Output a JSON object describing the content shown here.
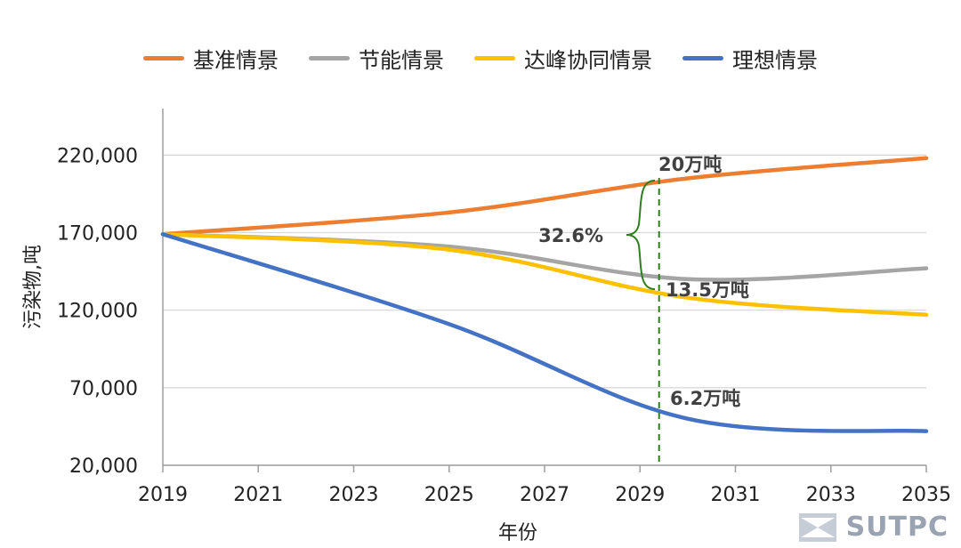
{
  "chart_data": {
    "type": "line",
    "title": "",
    "xlabel": "年份",
    "ylabel": "污染物,吨",
    "x": [
      2019,
      2025,
      2030,
      2035
    ],
    "xticks": [
      "2019",
      "2021",
      "2023",
      "2025",
      "2027",
      "2029",
      "2031",
      "2033",
      "2035"
    ],
    "yticks": [
      "20,000",
      "70,000",
      "120,000",
      "170,000",
      "220,000"
    ],
    "xlim": [
      2019,
      2035
    ],
    "ylim": [
      20000,
      250000
    ],
    "grid": "horizontal",
    "legend": "top-center",
    "series": [
      {
        "name": "基准情景",
        "color": "#ED7D31",
        "x": [
          2019,
          2025,
          2030,
          2035
        ],
        "y": [
          169000,
          183000,
          205000,
          218000
        ]
      },
      {
        "name": "节能情景",
        "color": "#A5A5A5",
        "x": [
          2019,
          2025,
          2030,
          2035
        ],
        "y": [
          169000,
          161000,
          140000,
          147000
        ]
      },
      {
        "name": "达峰协同情景",
        "color": "#FFC000",
        "x": [
          2019,
          2025,
          2030,
          2035
        ],
        "y": [
          169000,
          159000,
          128000,
          117000
        ]
      },
      {
        "name": "理想情景",
        "color": "#4472C4",
        "x": [
          2019,
          2025,
          2030,
          2035
        ],
        "y": [
          169000,
          111000,
          50000,
          42000
        ]
      }
    ],
    "annotations": {
      "top_label": "20万吨",
      "mid_label": "13.5万吨",
      "low_label": "6.2万吨",
      "percent_label": "32.6%",
      "marker_x": 2029.4
    }
  },
  "watermark": {
    "text": "SUTPC"
  },
  "colors": {
    "axis": "#9E9E9E",
    "grid": "#D9D9D9",
    "annotation": "#2E7D1E",
    "text": "#404040"
  }
}
